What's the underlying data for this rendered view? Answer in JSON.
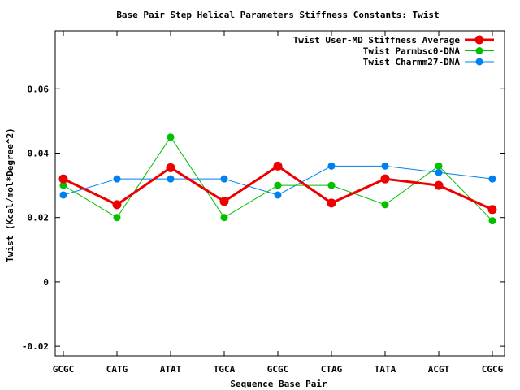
{
  "chart_data": {
    "type": "line",
    "title": "Base Pair Step Helical Parameters Stiffness Constants: Twist",
    "xlabel": "Sequence Base Pair",
    "ylabel": "Twist (Kcal/mol*Degree^2)",
    "categories": [
      "GCGC",
      "CATG",
      "ATAT",
      "TGCA",
      "GCGC",
      "CTAG",
      "TATA",
      "ACGT",
      "CGCG"
    ],
    "ylim": [
      -0.023,
      0.078
    ],
    "yticks": [
      -0.02,
      0,
      0.02,
      0.04,
      0.06
    ],
    "ytick_labels": [
      "-0.02",
      "0",
      "0.02",
      "0.04",
      "0.06"
    ],
    "grid": false,
    "legend_position": "top-right",
    "series": [
      {
        "name": "Twist User-MD Stiffness Average",
        "color": "#ee0000",
        "values": [
          0.032,
          0.024,
          0.0355,
          0.025,
          0.036,
          0.0245,
          0.032,
          0.03,
          0.0225
        ]
      },
      {
        "name": "Twist Parmbsc0-DNA",
        "color": "#00c000",
        "values": [
          0.03,
          0.02,
          0.045,
          0.02,
          0.03,
          0.03,
          0.024,
          0.036,
          0.019
        ]
      },
      {
        "name": "Twist Charmm27-DNA",
        "color": "#0080f0",
        "values": [
          0.027,
          0.032,
          0.032,
          0.032,
          0.027,
          0.036,
          0.036,
          0.034,
          0.032
        ]
      }
    ]
  }
}
